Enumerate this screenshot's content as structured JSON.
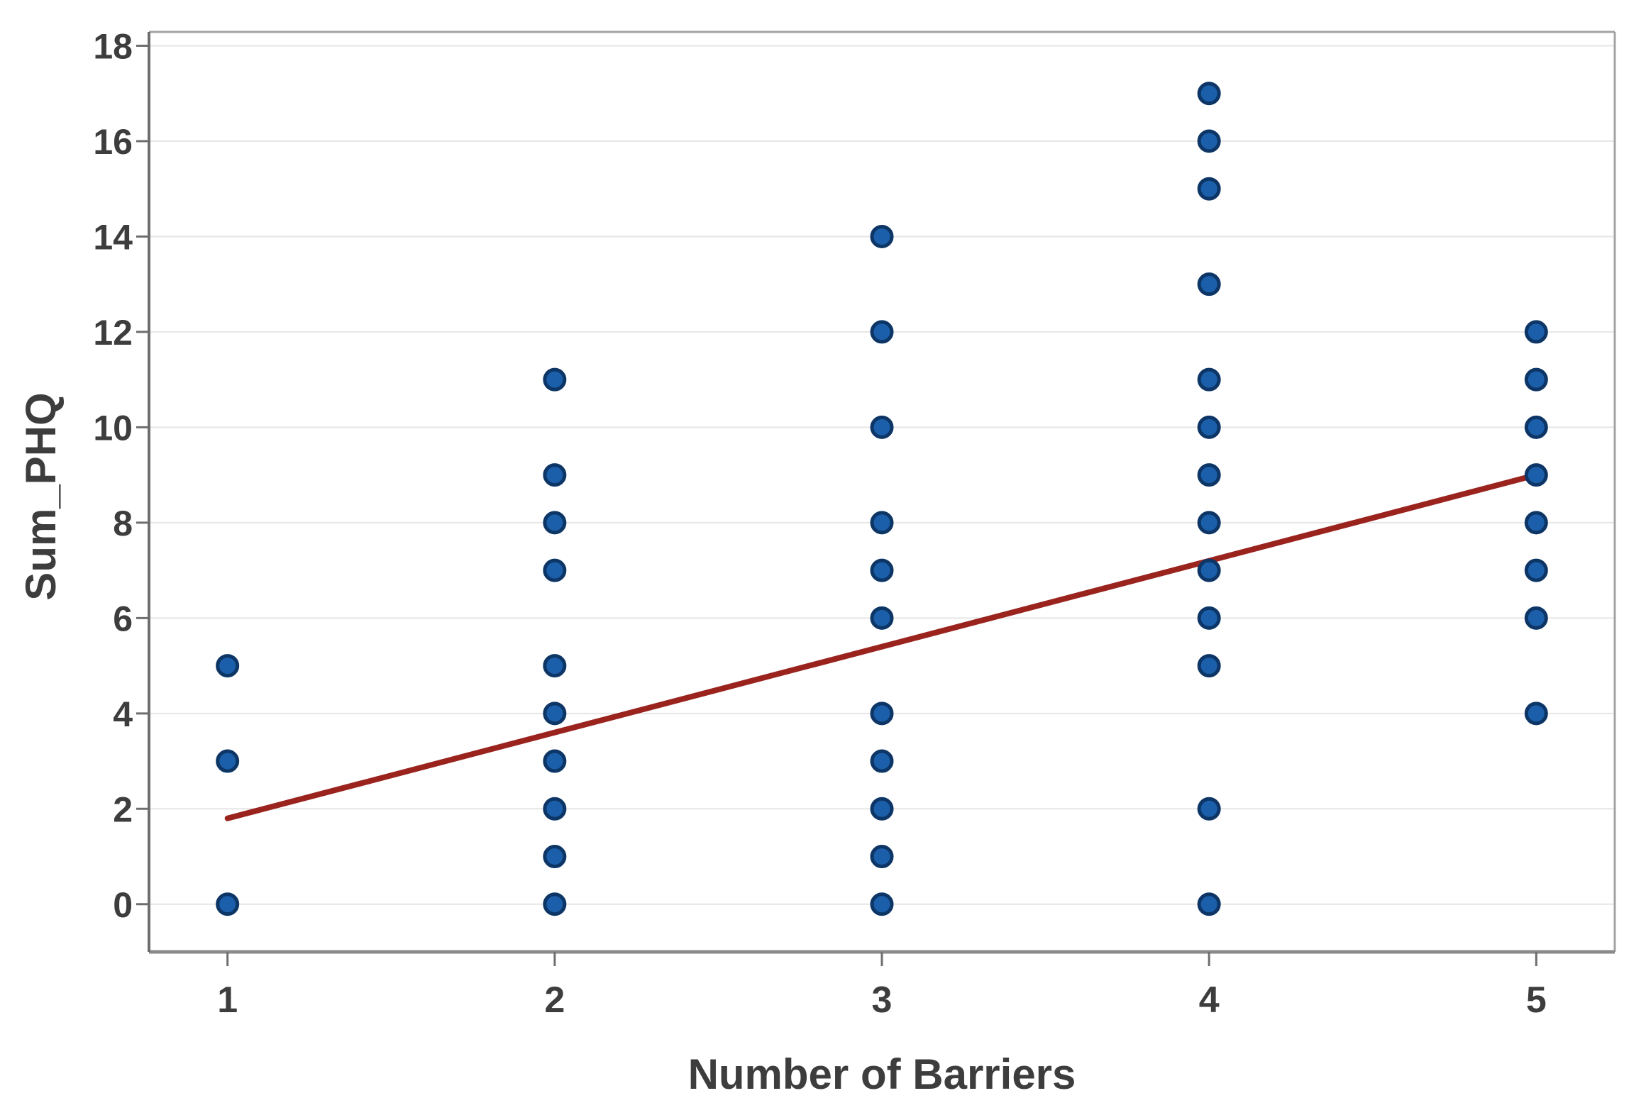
{
  "chart_data": {
    "type": "scatter",
    "title": "",
    "xlabel": "Number of Barriers",
    "ylabel": "Sum_PHQ",
    "x_ticks": [
      1,
      2,
      3,
      4,
      5
    ],
    "y_ticks": [
      0,
      2,
      4,
      6,
      8,
      10,
      12,
      14,
      16,
      18
    ],
    "xlim": [
      0.76,
      5.24
    ],
    "ylim": [
      -1.0,
      18.29
    ],
    "grid": "horizontal-only",
    "legend": "none",
    "series": [
      {
        "name": "observations",
        "type": "scatter",
        "color": "#1b5ea9",
        "edge_color": "#0d3666",
        "points": [
          [
            1,
            0
          ],
          [
            1,
            3
          ],
          [
            1,
            5
          ],
          [
            2,
            0
          ],
          [
            2,
            1
          ],
          [
            2,
            2
          ],
          [
            2,
            3
          ],
          [
            2,
            4
          ],
          [
            2,
            5
          ],
          [
            2,
            7
          ],
          [
            2,
            8
          ],
          [
            2,
            9
          ],
          [
            2,
            11
          ],
          [
            3,
            0
          ],
          [
            3,
            1
          ],
          [
            3,
            2
          ],
          [
            3,
            3
          ],
          [
            3,
            4
          ],
          [
            3,
            6
          ],
          [
            3,
            7
          ],
          [
            3,
            8
          ],
          [
            3,
            10
          ],
          [
            3,
            12
          ],
          [
            3,
            14
          ],
          [
            4,
            0
          ],
          [
            4,
            2
          ],
          [
            4,
            5
          ],
          [
            4,
            6
          ],
          [
            4,
            7
          ],
          [
            4,
            8
          ],
          [
            4,
            9
          ],
          [
            4,
            10
          ],
          [
            4,
            11
          ],
          [
            4,
            13
          ],
          [
            4,
            15
          ],
          [
            4,
            16
          ],
          [
            4,
            17
          ],
          [
            5,
            4
          ],
          [
            5,
            6
          ],
          [
            5,
            7
          ],
          [
            5,
            8
          ],
          [
            5,
            9
          ],
          [
            5,
            10
          ],
          [
            5,
            11
          ],
          [
            5,
            12
          ]
        ]
      },
      {
        "name": "fitted-line",
        "type": "line",
        "color": "#9a231e",
        "points": [
          [
            1.0,
            1.8
          ],
          [
            5.0,
            9.0
          ]
        ]
      }
    ],
    "colors": {
      "background": "#ffffff",
      "grid": "#e6e6e6",
      "frame_top": "#a3a3a3",
      "frame_right": "#a3a3a3",
      "frame_bottom": "#8a8a8a",
      "axis_left": "#6e6e6e",
      "tick": "#6e6e6e",
      "text": "#3d3d3d",
      "point_fill": "#1b5ea9",
      "point_edge": "#0d3666",
      "fit_line": "#9a231e"
    }
  }
}
